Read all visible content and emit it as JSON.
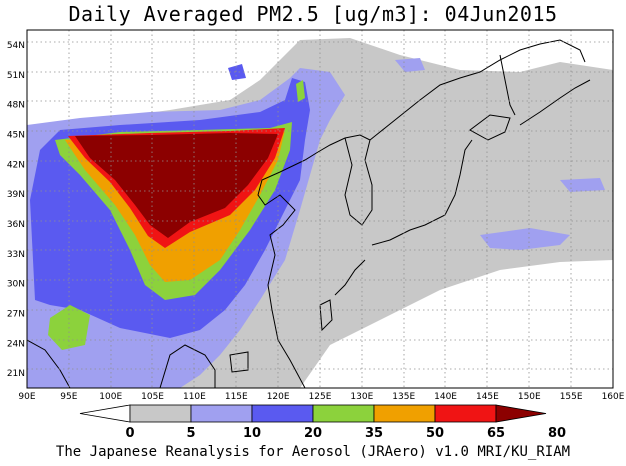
{
  "title": "Daily Averaged PM2.5 [ug/m3]: 04Jun2015",
  "credit": "The Japanese Reanalysis for Aerosol (JRAero) v1.0 MRI/KU_RIAM",
  "map": {
    "lon_range": [
      90,
      160
    ],
    "lat_range": [
      19.5,
      55.5
    ],
    "lon_ticks": [
      "90E",
      "95E",
      "100E",
      "105E",
      "110E",
      "115E",
      "120E",
      "125E",
      "130E",
      "135E",
      "140E",
      "145E",
      "150E",
      "155E",
      "160E"
    ],
    "lat_ticks": [
      "21N",
      "24N",
      "27N",
      "30N",
      "33N",
      "36N",
      "39N",
      "42N",
      "45N",
      "48N",
      "51N",
      "54N"
    ]
  },
  "colorbar": {
    "levels": [
      "0",
      "5",
      "10",
      "20",
      "35",
      "50",
      "65",
      "80"
    ],
    "colors": [
      "#ffffff",
      "#c8c8c8",
      "#a0a0f0",
      "#5a5af0",
      "#8cd23c",
      "#f0a000",
      "#f01414",
      "#8c0000"
    ]
  }
}
